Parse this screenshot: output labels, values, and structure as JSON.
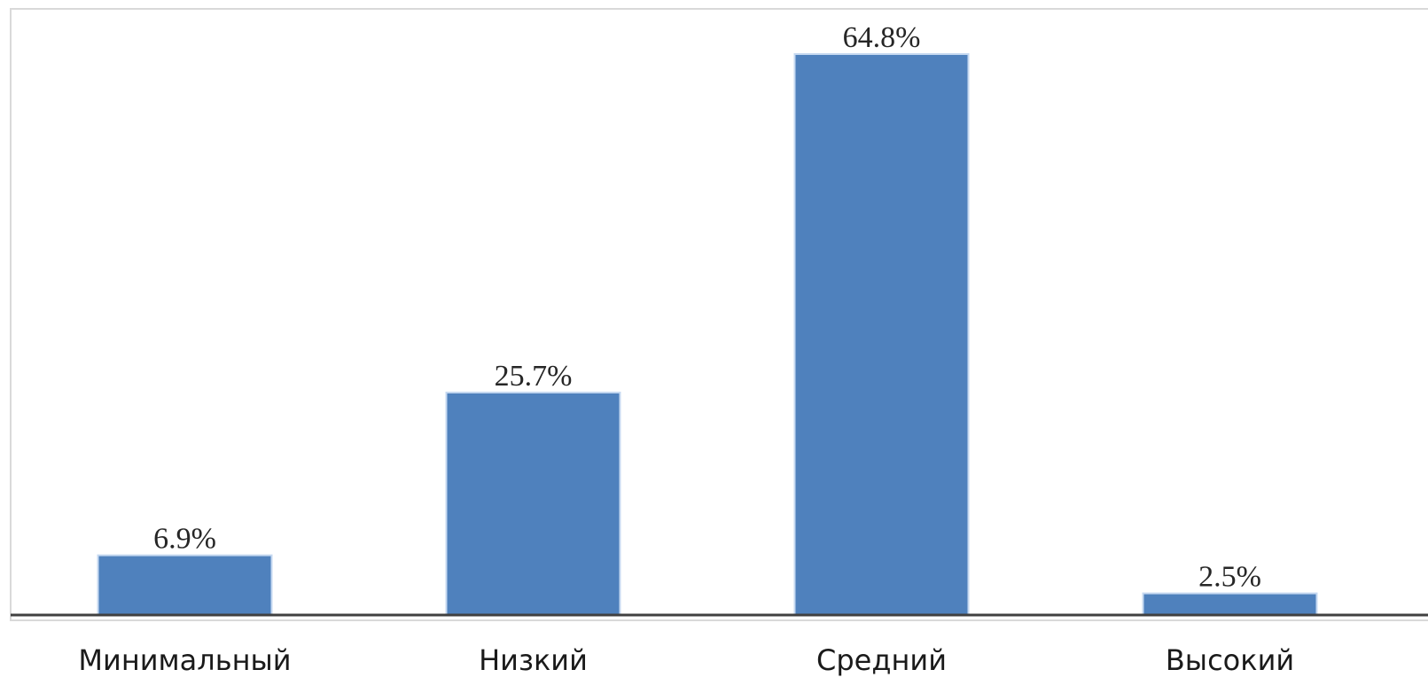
{
  "chart_data": {
    "type": "bar",
    "categories": [
      "Минимальный",
      "Низкий",
      "Средний",
      "Высокий"
    ],
    "values": [
      6.9,
      25.7,
      64.8,
      2.5
    ],
    "data_labels": [
      "6.9%",
      "25.7%",
      "64.8%",
      "2.5%"
    ],
    "title": "",
    "xlabel": "",
    "ylabel": "",
    "ylim": [
      0,
      70
    ],
    "grid": false,
    "legend": "none",
    "bar_color": "#4f81bd",
    "bar_edge_color": "#c6d9f1",
    "axis_color": "#404040",
    "frame_color": "#d9d9d9"
  }
}
